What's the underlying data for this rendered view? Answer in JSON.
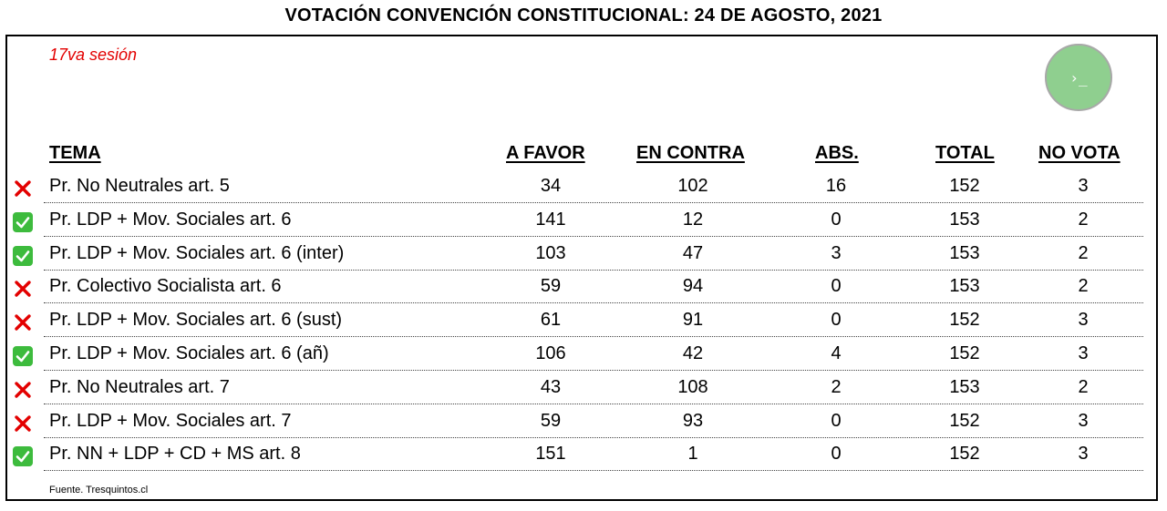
{
  "title": "VOTACIÓN CONVENCIÓN CONSTITUCIONAL: 24 DE AGOSTO, 2021",
  "session": "17va sesión",
  "terminal_button": {
    "icon": "terminal-icon",
    "glyph": "›_"
  },
  "headers": {
    "tema": "TEMA",
    "a_favor": "A FAVOR",
    "en_contra": "EN CONTRA",
    "abs": "ABS.",
    "total": "TOTAL",
    "no_vota": "NO VOTA"
  },
  "rows": [
    {
      "status": "rejected",
      "tema": "Pr. No Neutrales art. 5",
      "a_favor": "34",
      "en_contra": "102",
      "abs": "16",
      "total": "152",
      "no_vota": "3"
    },
    {
      "status": "approved",
      "tema": "Pr. LDP + Mov. Sociales art. 6",
      "a_favor": "141",
      "en_contra": "12",
      "abs": "0",
      "total": "153",
      "no_vota": "2"
    },
    {
      "status": "approved",
      "tema": "Pr. LDP + Mov. Sociales art. 6 (inter)",
      "a_favor": "103",
      "en_contra": "47",
      "abs": "3",
      "total": "153",
      "no_vota": "2"
    },
    {
      "status": "rejected",
      "tema": "Pr. Colectivo Socialista art. 6",
      "a_favor": "59",
      "en_contra": "94",
      "abs": "0",
      "total": "153",
      "no_vota": "2"
    },
    {
      "status": "rejected",
      "tema": "Pr. LDP + Mov. Sociales art. 6 (sust)",
      "a_favor": "61",
      "en_contra": "91",
      "abs": "0",
      "total": "152",
      "no_vota": "3"
    },
    {
      "status": "approved",
      "tema": "Pr. LDP + Mov. Sociales art. 6 (añ)",
      "a_favor": "106",
      "en_contra": "42",
      "abs": "4",
      "total": "152",
      "no_vota": "3"
    },
    {
      "status": "rejected",
      "tema": "Pr. No Neutrales art. 7",
      "a_favor": "43",
      "en_contra": "108",
      "abs": "2",
      "total": "153",
      "no_vota": "2"
    },
    {
      "status": "rejected",
      "tema": "Pr. LDP + Mov. Sociales art. 7",
      "a_favor": "59",
      "en_contra": "93",
      "abs": "0",
      "total": "152",
      "no_vota": "3"
    },
    {
      "status": "approved",
      "tema": "Pr. NN + LDP + CD + MS art. 8",
      "a_favor": "151",
      "en_contra": "1",
      "abs": "0",
      "total": "152",
      "no_vota": "3"
    }
  ],
  "source": "Fuente. Tresquintos.cl",
  "colors": {
    "cross": "#e30000",
    "check": "#3dbb3d",
    "session": "#e30000"
  }
}
